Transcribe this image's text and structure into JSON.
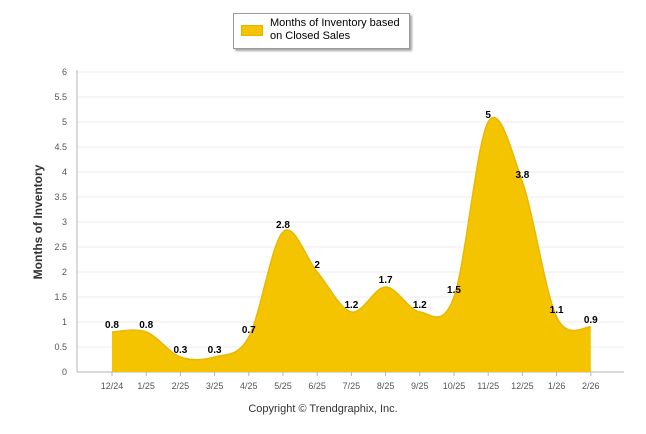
{
  "chart_data": {
    "type": "area",
    "title": "",
    "ylabel": "Months of Inventory",
    "xlabel": "",
    "ylim": [
      0,
      6
    ],
    "yticks": [
      "0",
      "0.5",
      "1",
      "1.5",
      "2",
      "2.5",
      "3",
      "3.5",
      "4",
      "4.5",
      "5",
      "5.5",
      "6"
    ],
    "grid": true,
    "legend": "top-center",
    "categories": [
      "12/24",
      "1/25",
      "2/25",
      "3/25",
      "4/25",
      "5/25",
      "6/25",
      "7/25",
      "8/25",
      "9/25",
      "10/25",
      "11/25",
      "12/25",
      "1/26",
      "2/26"
    ],
    "series": [
      {
        "name": "Months of Inventory based on Closed Sales",
        "color": "#f5c400",
        "values": [
          0.8,
          0.8,
          0.3,
          0.3,
          0.7,
          2.8,
          2,
          1.2,
          1.7,
          1.2,
          1.5,
          5,
          3.8,
          1.1,
          0.9
        ],
        "labels": [
          "0.8",
          "0.8",
          "0.3",
          "0.3",
          "0.7",
          "2.8",
          "2",
          "1.2",
          "1.7",
          "1.2",
          "1.5",
          "5",
          "3.8",
          "1.1",
          "0.9"
        ]
      }
    ]
  },
  "legend": {
    "label": "Months of Inventory based on Closed Sales"
  },
  "footer": {
    "copyright": "Copyright © Trendgraphix, Inc."
  }
}
